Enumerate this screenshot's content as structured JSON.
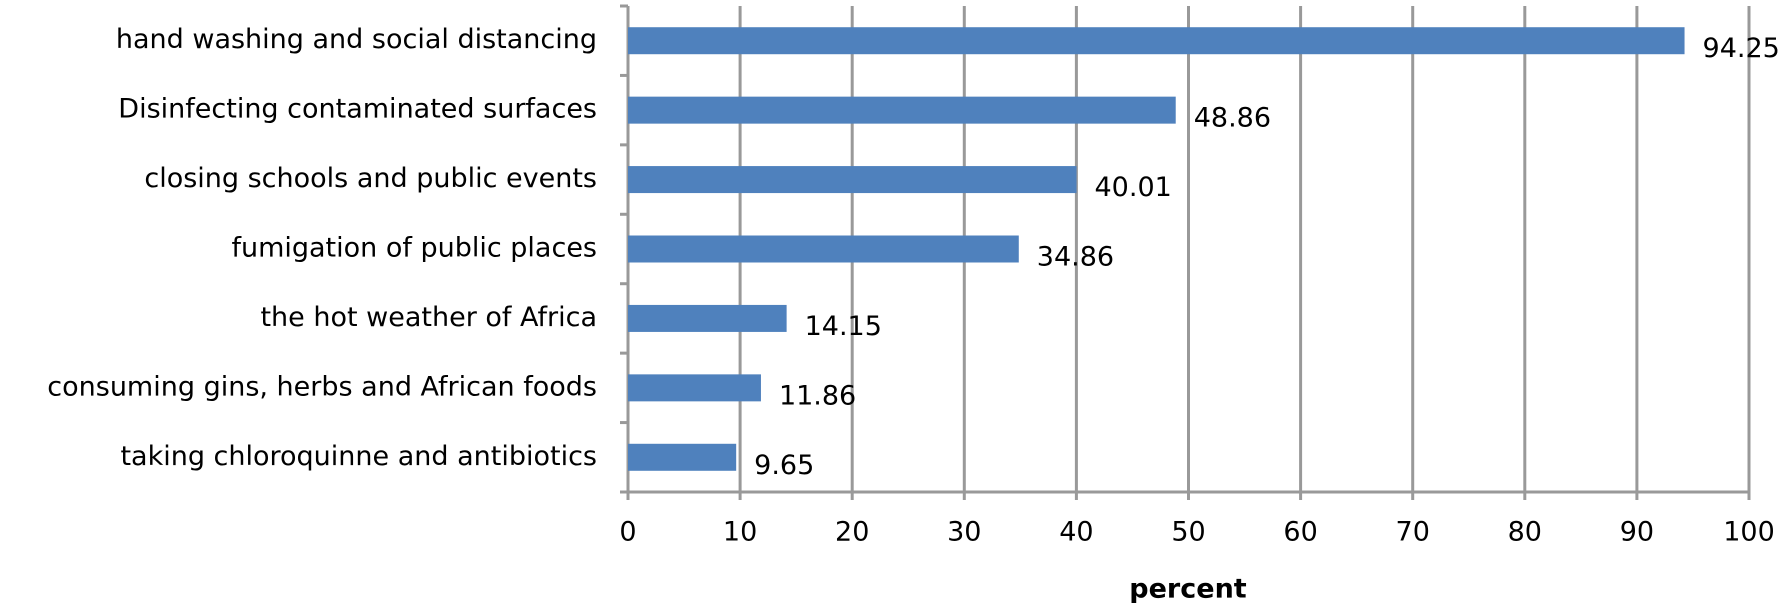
{
  "chart_data": {
    "type": "bar",
    "orientation": "horizontal",
    "categories": [
      "hand washing and social distancing",
      "Disinfecting contaminated surfaces",
      "closing schools and public events",
      "fumigation of public places",
      "the hot weather of Africa",
      "consuming gins, herbs and African foods",
      "taking chloroquinne and antibiotics"
    ],
    "values": [
      94.25,
      48.86,
      40.01,
      34.86,
      14.15,
      11.86,
      9.65
    ],
    "color": "#4f81bd",
    "xlabel": "percent",
    "xlim": [
      0,
      100
    ],
    "xticks": [
      0,
      10,
      20,
      30,
      40,
      50,
      60,
      70,
      80,
      90,
      100
    ],
    "grid": true
  }
}
